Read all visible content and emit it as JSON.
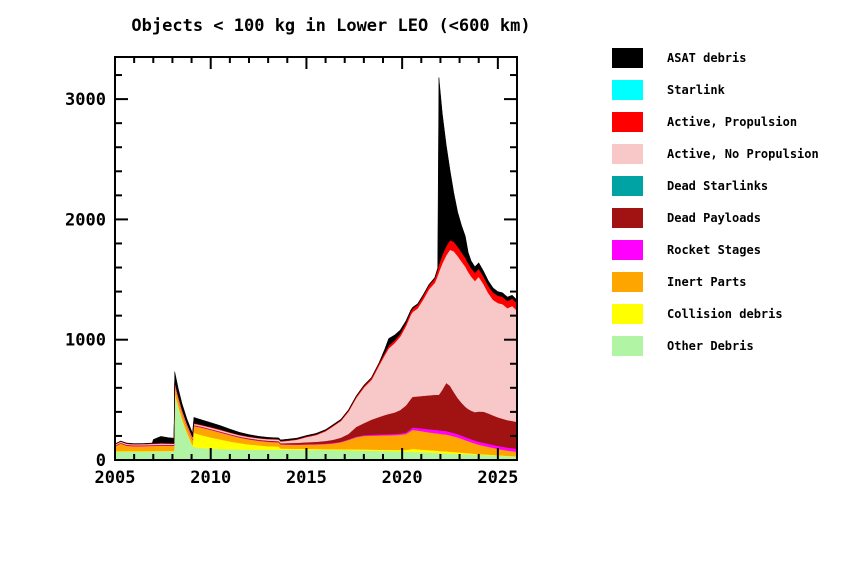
{
  "page": {
    "background": "#ffffff"
  },
  "chart_data": {
    "type": "area",
    "stacked": true,
    "title": "Objects < 100 kg in Lower LEO (<600 km)",
    "xlabel": "",
    "ylabel": "",
    "xlim": [
      2005,
      2026
    ],
    "ylim": [
      0,
      3350
    ],
    "x_major_ticks": [
      2005,
      2010,
      2015,
      2020,
      2025
    ],
    "x_minor_tick_interval": 1,
    "y_major_ticks": [
      0,
      1000,
      2000,
      3000
    ],
    "y_minor_tick_interval": 200,
    "grid": false,
    "legend_position": "right",
    "axis_color": "#000000",
    "x": [
      2005.0,
      2005.3,
      2005.6,
      2006.0,
      2006.5,
      2006.95,
      2007.0,
      2007.4,
      2007.8,
      2008.08,
      2008.12,
      2008.3,
      2008.5,
      2008.75,
      2009.05,
      2009.12,
      2009.3,
      2009.6,
      2010.0,
      2010.5,
      2011.0,
      2011.5,
      2012.0,
      2012.5,
      2013.0,
      2013.55,
      2013.65,
      2014.0,
      2014.5,
      2015.0,
      2015.5,
      2016.0,
      2016.4,
      2016.8,
      2017.2,
      2017.6,
      2018.0,
      2018.4,
      2018.8,
      2019.1,
      2019.3,
      2019.6,
      2019.9,
      2020.2,
      2020.45,
      2020.55,
      2020.8,
      2021.1,
      2021.4,
      2021.7,
      2021.86,
      2021.92,
      2022.1,
      2022.3,
      2022.5,
      2022.7,
      2022.9,
      2023.1,
      2023.3,
      2023.45,
      2023.6,
      2023.8,
      2024.0,
      2024.25,
      2024.5,
      2024.75,
      2025.0,
      2025.25,
      2025.5,
      2025.75,
      2026.0
    ],
    "series": [
      {
        "name": "Other Debris",
        "color": "#B0F4A4",
        "values": [
          70,
          70,
          70,
          70,
          70,
          71,
          71,
          72,
          72,
          72,
          555,
          445,
          335,
          225,
          115,
          108,
          103,
          98,
          94,
          91,
          89,
          87,
          86,
          86,
          85,
          85,
          85,
          85,
          84,
          84,
          84,
          83,
          83,
          82,
          80,
          79,
          78,
          77,
          76,
          75,
          74,
          73,
          72,
          70,
          68,
          67,
          66,
          64,
          62,
          60,
          58,
          57,
          56,
          54,
          52,
          51,
          50,
          49,
          48,
          47,
          46,
          44,
          43,
          42,
          40,
          38,
          36,
          34,
          32,
          30,
          28
        ]
      },
      {
        "name": "Collision debris",
        "color": "#FFFF00",
        "values": [
          4,
          4,
          4,
          4,
          4,
          4,
          4,
          4,
          4,
          4,
          8,
          8,
          8,
          8,
          8,
          118,
          114,
          106,
          94,
          80,
          66,
          54,
          44,
          36,
          30,
          27,
          11,
          10,
          9,
          9,
          8,
          8,
          8,
          8,
          9,
          10,
          10,
          10,
          10,
          10,
          10,
          11,
          12,
          14,
          22,
          26,
          24,
          22,
          20,
          19,
          19,
          19,
          18,
          18,
          17,
          16,
          14,
          13,
          11,
          10,
          9,
          8,
          7,
          6,
          6,
          5,
          4,
          4,
          3,
          3,
          3
        ]
      },
      {
        "name": "Inert Parts",
        "color": "#FFA500",
        "values": [
          38,
          62,
          45,
          40,
          41,
          42,
          42,
          44,
          43,
          42,
          60,
          57,
          54,
          50,
          46,
          56,
          60,
          62,
          62,
          58,
          52,
          46,
          41,
          38,
          36,
          35,
          33,
          33,
          34,
          36,
          38,
          42,
          47,
          58,
          78,
          100,
          112,
          116,
          118,
          120,
          121,
          123,
          126,
          132,
          150,
          158,
          155,
          152,
          148,
          145,
          144,
          143,
          141,
          140,
          136,
          130,
          124,
          116,
          106,
          100,
          93,
          86,
          78,
          71,
          64,
          58,
          52,
          48,
          44,
          41,
          38
        ]
      },
      {
        "name": "Rocket Stages",
        "color": "#FF00FF",
        "values": [
          3,
          3,
          3,
          3,
          3,
          3,
          3,
          3,
          3,
          3,
          3,
          3,
          3,
          3,
          3,
          3,
          3,
          3,
          3,
          3,
          3,
          3,
          3,
          3,
          3,
          3,
          3,
          3,
          3,
          3,
          3,
          4,
          4,
          4,
          5,
          6,
          7,
          8,
          9,
          9,
          10,
          10,
          11,
          13,
          18,
          20,
          22,
          24,
          26,
          28,
          29,
          29,
          29,
          29,
          28,
          28,
          27,
          26,
          26,
          25,
          25,
          25,
          25,
          25,
          25,
          25,
          25,
          25,
          25,
          25,
          24
        ]
      },
      {
        "name": "Dead Payloads",
        "color": "#A11212",
        "values": [
          5,
          5,
          5,
          5,
          5,
          5,
          5,
          5,
          5,
          5,
          5,
          5,
          5,
          5,
          5,
          5,
          5,
          5,
          5,
          5,
          5,
          5,
          6,
          6,
          7,
          7,
          8,
          10,
          13,
          16,
          18,
          22,
          27,
          34,
          45,
          80,
          100,
          125,
          145,
          160,
          168,
          178,
          195,
          225,
          250,
          255,
          262,
          272,
          282,
          290,
          293,
          295,
          340,
          400,
          385,
          340,
          300,
          272,
          252,
          242,
          238,
          235,
          250,
          258,
          252,
          245,
          238,
          232,
          228,
          226,
          224
        ]
      },
      {
        "name": "Dead Starlinks",
        "color": "#00A3A3",
        "values": 0
      },
      {
        "name": "Active, No Propulsion",
        "color": "#F8C8C8",
        "values": [
          8,
          8,
          8,
          8,
          8,
          9,
          9,
          9,
          9,
          9,
          10,
          10,
          10,
          10,
          10,
          11,
          11,
          11,
          12,
          12,
          12,
          11,
          11,
          11,
          12,
          13,
          14,
          18,
          26,
          42,
          56,
          80,
          112,
          138,
          185,
          240,
          295,
          330,
          430,
          500,
          545,
          575,
          610,
          660,
          700,
          705,
          730,
          800,
          880,
          930,
          990,
          1020,
          1050,
          1060,
          1130,
          1170,
          1180,
          1175,
          1165,
          1140,
          1115,
          1090,
          1120,
          1060,
          1000,
          960,
          950,
          952,
          930,
          955,
          925
        ]
      },
      {
        "name": "Active, Propulsion",
        "color": "#FF0000",
        "values": [
          4,
          4,
          4,
          4,
          4,
          4,
          4,
          4,
          4,
          4,
          6,
          6,
          6,
          5,
          5,
          5,
          5,
          5,
          5,
          5,
          4,
          4,
          4,
          4,
          4,
          4,
          4,
          5,
          5,
          6,
          6,
          7,
          7,
          8,
          10,
          12,
          14,
          16,
          18,
          20,
          22,
          23,
          24,
          26,
          27,
          28,
          29,
          31,
          33,
          36,
          50,
          62,
          70,
          76,
          80,
          80,
          78,
          76,
          74,
          72,
          70,
          68,
          66,
          64,
          62,
          61,
          62,
          62,
          60,
          62,
          60
        ]
      },
      {
        "name": "Starlink",
        "color": "#00FFFF",
        "values": 0
      },
      {
        "name": "ASAT debris",
        "color": "#000000",
        "values": [
          2,
          2,
          2,
          2,
          2,
          3,
          32,
          55,
          45,
          42,
          88,
          62,
          48,
          38,
          30,
          48,
          44,
          40,
          36,
          32,
          26,
          20,
          16,
          13,
          11,
          10,
          9,
          9,
          8,
          8,
          8,
          7,
          7,
          6,
          6,
          6,
          6,
          5,
          5,
          30,
          60,
          45,
          30,
          18,
          12,
          11,
          10,
          9,
          8,
          8,
          12,
          1555,
          1176,
          843,
          582,
          405,
          287,
          223,
          178,
          90,
          60,
          50,
          51,
          44,
          41,
          38,
          33,
          33,
          33,
          28,
          28
        ]
      }
    ],
    "legend": [
      {
        "label": "ASAT debris",
        "color": "#000000"
      },
      {
        "label": "Starlink",
        "color": "#00FFFF"
      },
      {
        "label": "Active, Propulsion",
        "color": "#FF0000"
      },
      {
        "label": "Active, No Propulsion",
        "color": "#F8C8C8"
      },
      {
        "label": "Dead Starlinks",
        "color": "#00A3A3"
      },
      {
        "label": "Dead Payloads",
        "color": "#A11212"
      },
      {
        "label": "Rocket Stages",
        "color": "#FF00FF"
      },
      {
        "label": "Inert Parts",
        "color": "#FFA500"
      },
      {
        "label": "Collision debris",
        "color": "#FFFF00"
      },
      {
        "label": "Other Debris",
        "color": "#B0F4A4"
      }
    ]
  }
}
